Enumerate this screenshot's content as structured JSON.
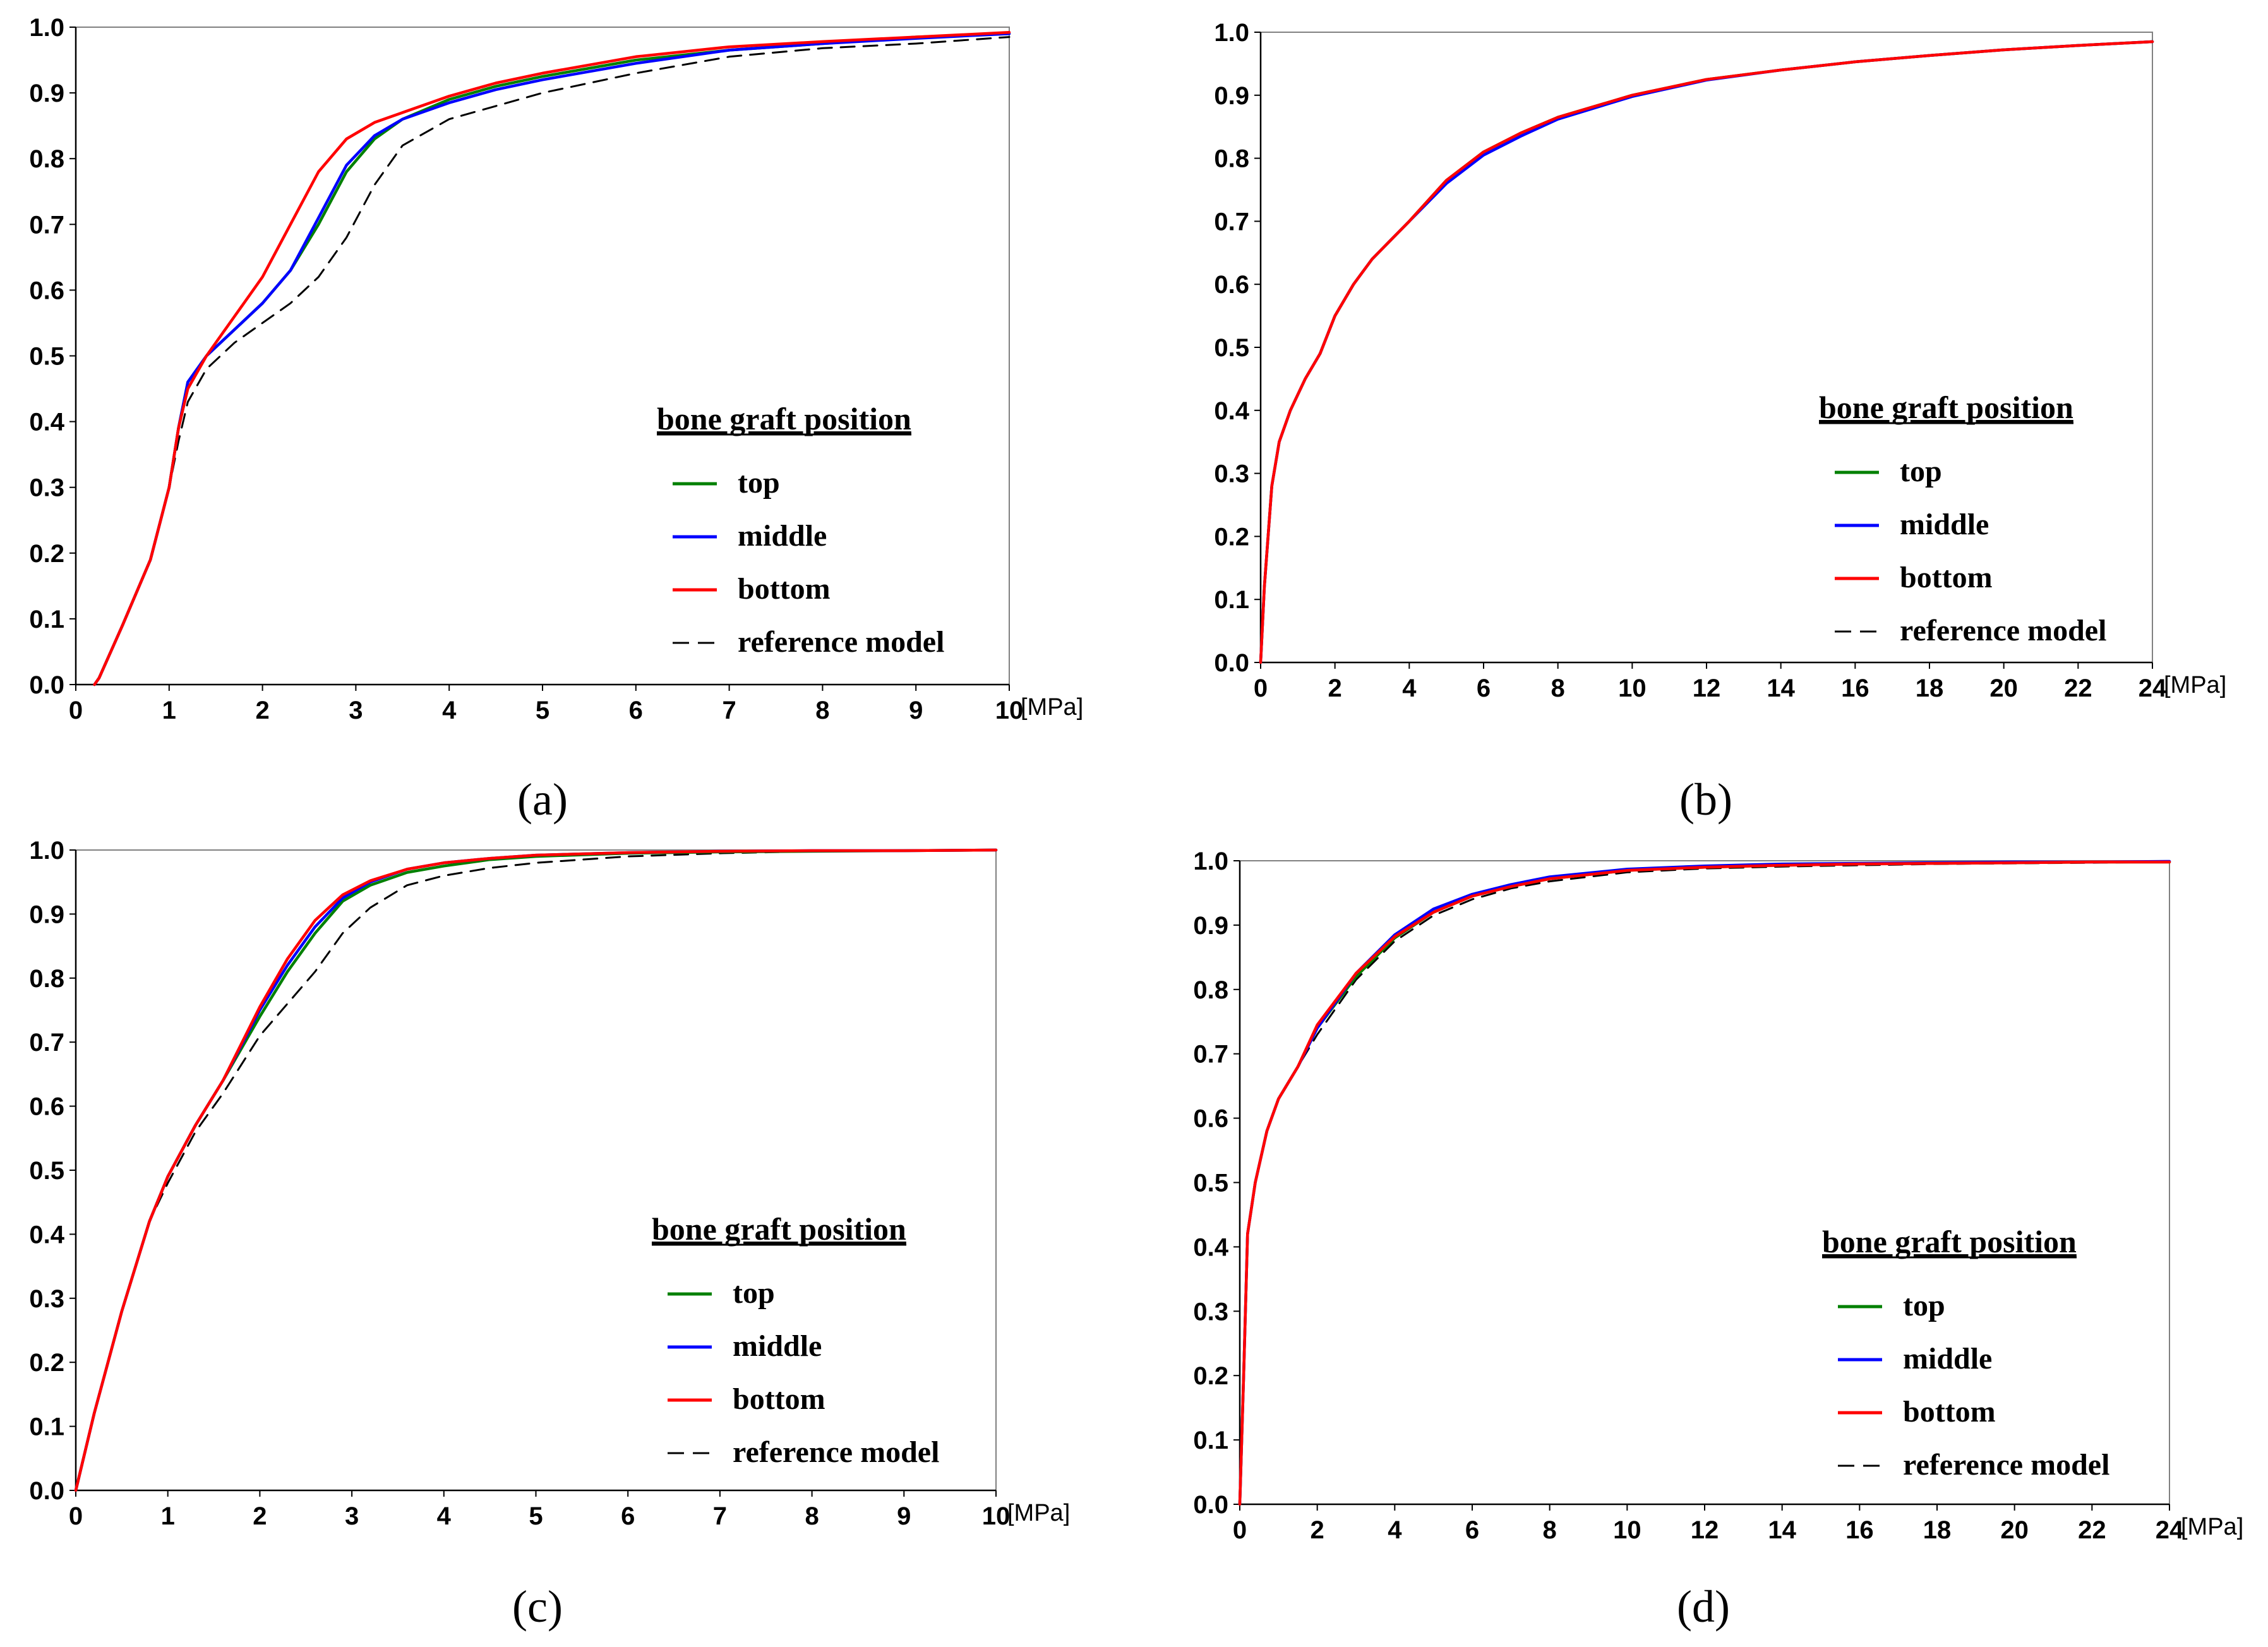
{
  "figure": {
    "unit_label": "[MPa]",
    "legend_title": "bone graft position",
    "series_colors": {
      "top": "#008000",
      "middle": "#0000ff",
      "bottom": "#ff0000",
      "reference model": "#000000"
    }
  },
  "chart_data": [
    {
      "type": "line",
      "caption": "(a)",
      "xlim": [
        0,
        10
      ],
      "ylim": [
        0,
        1
      ],
      "xticks": [
        0,
        1,
        2,
        3,
        4,
        5,
        6,
        7,
        8,
        9,
        10
      ],
      "yticks": [
        "0.0",
        "0.1",
        "0.2",
        "0.3",
        "0.4",
        "0.5",
        "0.6",
        "0.7",
        "0.8",
        "0.9",
        "1.0"
      ],
      "legend_title": "bone graft position",
      "series": [
        {
          "name": "top",
          "x": [
            0.2,
            0.25,
            0.5,
            0.8,
            1.0,
            1.1,
            1.2,
            1.4,
            1.7,
            2.0,
            2.3,
            2.6,
            2.9,
            3.2,
            3.5,
            4.0,
            4.5,
            5.0,
            6.0,
            7.0,
            8.0,
            9.0,
            10.0
          ],
          "y": [
            0,
            0.01,
            0.09,
            0.19,
            0.3,
            0.39,
            0.46,
            0.5,
            0.54,
            0.58,
            0.63,
            0.7,
            0.78,
            0.83,
            0.86,
            0.89,
            0.91,
            0.925,
            0.95,
            0.965,
            0.975,
            0.985,
            0.99
          ]
        },
        {
          "name": "middle",
          "x": [
            0.2,
            0.25,
            0.5,
            0.8,
            1.0,
            1.1,
            1.2,
            1.4,
            1.7,
            2.0,
            2.3,
            2.6,
            2.9,
            3.2,
            3.5,
            4.0,
            4.5,
            5.0,
            6.0,
            7.0,
            8.0,
            9.0,
            10.0
          ],
          "y": [
            0,
            0.01,
            0.09,
            0.19,
            0.3,
            0.39,
            0.46,
            0.5,
            0.54,
            0.58,
            0.63,
            0.71,
            0.79,
            0.835,
            0.86,
            0.885,
            0.905,
            0.92,
            0.945,
            0.965,
            0.975,
            0.983,
            0.99
          ]
        },
        {
          "name": "bottom",
          "x": [
            0.2,
            0.25,
            0.5,
            0.8,
            1.0,
            1.1,
            1.2,
            1.4,
            1.7,
            2.0,
            2.3,
            2.6,
            2.9,
            3.2,
            3.5,
            4.0,
            4.5,
            5.0,
            6.0,
            7.0,
            8.0,
            9.0,
            10.0
          ],
          "y": [
            0,
            0.01,
            0.09,
            0.19,
            0.3,
            0.39,
            0.45,
            0.5,
            0.56,
            0.62,
            0.7,
            0.78,
            0.83,
            0.855,
            0.87,
            0.895,
            0.915,
            0.93,
            0.955,
            0.97,
            0.978,
            0.985,
            0.992
          ]
        },
        {
          "name": "reference model",
          "x": [
            0.2,
            0.25,
            0.5,
            0.8,
            1.0,
            1.1,
            1.2,
            1.4,
            1.7,
            2.0,
            2.3,
            2.6,
            2.9,
            3.2,
            3.5,
            4.0,
            4.5,
            5.0,
            6.0,
            7.0,
            8.0,
            9.0,
            10.0
          ],
          "y": [
            0,
            0.01,
            0.09,
            0.19,
            0.3,
            0.37,
            0.43,
            0.48,
            0.52,
            0.55,
            0.58,
            0.62,
            0.68,
            0.76,
            0.82,
            0.86,
            0.88,
            0.9,
            0.93,
            0.955,
            0.968,
            0.975,
            0.985
          ]
        }
      ]
    },
    {
      "type": "line",
      "caption": "(b)",
      "xlim": [
        0,
        24
      ],
      "ylim": [
        0,
        1
      ],
      "xticks": [
        0,
        2,
        4,
        6,
        8,
        10,
        12,
        14,
        16,
        18,
        20,
        22,
        24
      ],
      "yticks": [
        "0.0",
        "0.1",
        "0.2",
        "0.3",
        "0.4",
        "0.5",
        "0.6",
        "0.7",
        "0.8",
        "0.9",
        "1.0"
      ],
      "legend_title": "bone graft position",
      "series": [
        {
          "name": "top",
          "x": [
            0,
            0.1,
            0.3,
            0.5,
            0.8,
            1.2,
            1.6,
            2.0,
            2.5,
            3.0,
            3.5,
            4.0,
            5.0,
            6.0,
            7.0,
            8.0,
            10.0,
            12.0,
            14.0,
            16.0,
            18.0,
            20.0,
            22.0,
            24.0
          ],
          "y": [
            0,
            0.12,
            0.28,
            0.35,
            0.4,
            0.45,
            0.49,
            0.55,
            0.6,
            0.64,
            0.67,
            0.7,
            0.765,
            0.81,
            0.84,
            0.865,
            0.9,
            0.925,
            0.94,
            0.953,
            0.963,
            0.972,
            0.979,
            0.985
          ]
        },
        {
          "name": "middle",
          "x": [
            0,
            0.1,
            0.3,
            0.5,
            0.8,
            1.2,
            1.6,
            2.0,
            2.5,
            3.0,
            3.5,
            4.0,
            5.0,
            6.0,
            7.0,
            8.0,
            10.0,
            12.0,
            14.0,
            16.0,
            18.0,
            20.0,
            22.0,
            24.0
          ],
          "y": [
            0,
            0.12,
            0.28,
            0.35,
            0.4,
            0.45,
            0.49,
            0.55,
            0.6,
            0.64,
            0.67,
            0.7,
            0.76,
            0.805,
            0.835,
            0.862,
            0.898,
            0.924,
            0.94,
            0.953,
            0.963,
            0.972,
            0.979,
            0.985
          ]
        },
        {
          "name": "bottom",
          "x": [
            0,
            0.1,
            0.3,
            0.5,
            0.8,
            1.2,
            1.6,
            2.0,
            2.5,
            3.0,
            3.5,
            4.0,
            5.0,
            6.0,
            7.0,
            8.0,
            10.0,
            12.0,
            14.0,
            16.0,
            18.0,
            20.0,
            22.0,
            24.0
          ],
          "y": [
            0,
            0.12,
            0.28,
            0.35,
            0.4,
            0.45,
            0.49,
            0.55,
            0.6,
            0.64,
            0.67,
            0.7,
            0.765,
            0.81,
            0.84,
            0.865,
            0.9,
            0.925,
            0.94,
            0.953,
            0.963,
            0.972,
            0.979,
            0.985
          ]
        },
        {
          "name": "reference model",
          "x": [
            0,
            0.1,
            0.3,
            0.5,
            0.8,
            1.2,
            1.6,
            2.0,
            2.5,
            3.0,
            3.5,
            4.0,
            5.0,
            6.0,
            7.0,
            8.0,
            10.0,
            12.0,
            14.0,
            16.0,
            18.0,
            20.0,
            22.0,
            24.0
          ],
          "y": [
            0,
            0.12,
            0.28,
            0.35,
            0.4,
            0.45,
            0.49,
            0.55,
            0.6,
            0.64,
            0.67,
            0.7,
            0.765,
            0.81,
            0.84,
            0.865,
            0.9,
            0.925,
            0.94,
            0.953,
            0.963,
            0.972,
            0.979,
            0.985
          ]
        }
      ]
    },
    {
      "type": "line",
      "caption": "(c)",
      "xlim": [
        0,
        10
      ],
      "ylim": [
        0,
        1
      ],
      "xticks": [
        0,
        1,
        2,
        3,
        4,
        5,
        6,
        7,
        8,
        9,
        10
      ],
      "yticks": [
        "0.0",
        "0.1",
        "0.2",
        "0.3",
        "0.4",
        "0.5",
        "0.6",
        "0.7",
        "0.8",
        "0.9",
        "1.0"
      ],
      "legend_title": "bone graft position",
      "series": [
        {
          "name": "top",
          "x": [
            0,
            0.2,
            0.5,
            0.8,
            1.0,
            1.3,
            1.6,
            2.0,
            2.3,
            2.6,
            2.9,
            3.2,
            3.6,
            4.0,
            4.5,
            5.0,
            6.0,
            7.0,
            8.0,
            9.0,
            10.0
          ],
          "y": [
            0,
            0.12,
            0.28,
            0.42,
            0.49,
            0.57,
            0.64,
            0.74,
            0.81,
            0.87,
            0.92,
            0.945,
            0.965,
            0.975,
            0.985,
            0.99,
            0.995,
            0.997,
            0.998,
            0.999,
            1.0
          ]
        },
        {
          "name": "middle",
          "x": [
            0,
            0.2,
            0.5,
            0.8,
            1.0,
            1.3,
            1.6,
            2.0,
            2.3,
            2.6,
            2.9,
            3.2,
            3.6,
            4.0,
            4.5,
            5.0,
            6.0,
            7.0,
            8.0,
            9.0,
            10.0
          ],
          "y": [
            0,
            0.12,
            0.28,
            0.42,
            0.49,
            0.57,
            0.64,
            0.75,
            0.82,
            0.88,
            0.925,
            0.95,
            0.97,
            0.98,
            0.987,
            0.992,
            0.996,
            0.998,
            0.999,
            0.999,
            1.0
          ]
        },
        {
          "name": "bottom",
          "x": [
            0,
            0.2,
            0.5,
            0.8,
            1.0,
            1.3,
            1.6,
            2.0,
            2.3,
            2.6,
            2.9,
            3.2,
            3.6,
            4.0,
            4.5,
            5.0,
            6.0,
            7.0,
            8.0,
            9.0,
            10.0
          ],
          "y": [
            0,
            0.12,
            0.28,
            0.42,
            0.49,
            0.57,
            0.64,
            0.755,
            0.83,
            0.89,
            0.93,
            0.952,
            0.97,
            0.98,
            0.987,
            0.992,
            0.996,
            0.998,
            0.999,
            0.999,
            1.0
          ]
        },
        {
          "name": "reference model",
          "x": [
            0,
            0.2,
            0.5,
            0.8,
            1.0,
            1.3,
            1.6,
            2.0,
            2.3,
            2.6,
            2.9,
            3.2,
            3.6,
            4.0,
            4.5,
            5.0,
            6.0,
            7.0,
            8.0,
            9.0,
            10.0
          ],
          "y": [
            0,
            0.12,
            0.28,
            0.42,
            0.48,
            0.56,
            0.62,
            0.71,
            0.76,
            0.81,
            0.87,
            0.91,
            0.945,
            0.96,
            0.972,
            0.98,
            0.99,
            0.995,
            0.998,
            0.999,
            1.0
          ]
        }
      ]
    },
    {
      "type": "line",
      "caption": "(d)",
      "xlim": [
        0,
        24
      ],
      "ylim": [
        0,
        1
      ],
      "xticks": [
        0,
        2,
        4,
        6,
        8,
        10,
        12,
        14,
        16,
        18,
        20,
        22,
        24
      ],
      "yticks": [
        "0.0",
        "0.1",
        "0.2",
        "0.3",
        "0.4",
        "0.5",
        "0.6",
        "0.7",
        "0.8",
        "0.9",
        "1.0"
      ],
      "legend_title": "bone graft position",
      "series": [
        {
          "name": "top",
          "x": [
            0,
            0.1,
            0.2,
            0.4,
            0.7,
            1.0,
            1.5,
            2.0,
            3.0,
            4.0,
            5.0,
            6.0,
            7.0,
            8.0,
            10.0,
            12.0,
            14.0,
            16.0,
            18.0,
            20.0,
            22.0,
            24.0
          ],
          "y": [
            0,
            0.2,
            0.42,
            0.5,
            0.58,
            0.63,
            0.68,
            0.74,
            0.82,
            0.88,
            0.92,
            0.945,
            0.96,
            0.972,
            0.985,
            0.99,
            0.993,
            0.995,
            0.996,
            0.997,
            0.998,
            0.998
          ]
        },
        {
          "name": "middle",
          "x": [
            0,
            0.1,
            0.2,
            0.4,
            0.7,
            1.0,
            1.5,
            2.0,
            3.0,
            4.0,
            5.0,
            6.0,
            7.0,
            8.0,
            10.0,
            12.0,
            14.0,
            16.0,
            18.0,
            20.0,
            22.0,
            24.0
          ],
          "y": [
            0,
            0.2,
            0.42,
            0.5,
            0.58,
            0.63,
            0.68,
            0.74,
            0.825,
            0.885,
            0.925,
            0.948,
            0.963,
            0.975,
            0.987,
            0.992,
            0.995,
            0.996,
            0.997,
            0.998,
            0.998,
            0.999
          ]
        },
        {
          "name": "bottom",
          "x": [
            0,
            0.1,
            0.2,
            0.4,
            0.7,
            1.0,
            1.5,
            2.0,
            3.0,
            4.0,
            5.0,
            6.0,
            7.0,
            8.0,
            10.0,
            12.0,
            14.0,
            16.0,
            18.0,
            20.0,
            22.0,
            24.0
          ],
          "y": [
            0,
            0.2,
            0.42,
            0.5,
            0.58,
            0.63,
            0.68,
            0.745,
            0.825,
            0.882,
            0.92,
            0.945,
            0.96,
            0.972,
            0.985,
            0.99,
            0.993,
            0.995,
            0.996,
            0.997,
            0.998,
            0.998
          ]
        },
        {
          "name": "reference model",
          "x": [
            0,
            0.1,
            0.2,
            0.4,
            0.7,
            1.0,
            1.5,
            2.0,
            3.0,
            4.0,
            5.0,
            6.0,
            7.0,
            8.0,
            10.0,
            12.0,
            14.0,
            16.0,
            18.0,
            20.0,
            22.0,
            24.0
          ],
          "y": [
            0,
            0.2,
            0.42,
            0.5,
            0.58,
            0.63,
            0.68,
            0.73,
            0.815,
            0.875,
            0.915,
            0.94,
            0.957,
            0.968,
            0.982,
            0.988,
            0.991,
            0.993,
            0.995,
            0.996,
            0.997,
            0.998
          ]
        }
      ]
    }
  ]
}
